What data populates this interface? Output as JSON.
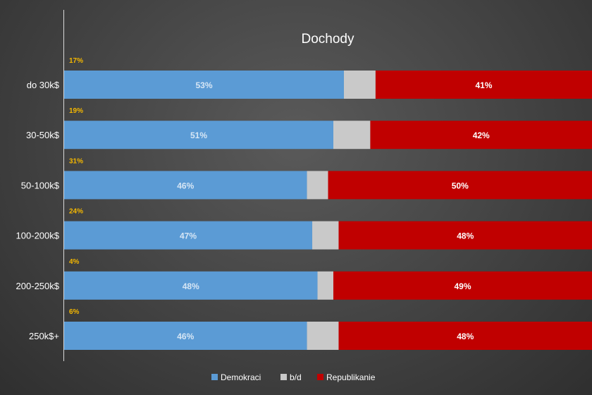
{
  "chart_data": {
    "type": "bar",
    "orientation": "horizontal",
    "stacked": true,
    "percent_stacked": true,
    "title": "Dochody",
    "categories": [
      "do 30k$",
      "30-50k$",
      "50-100k$",
      "100-200k$",
      "200-250k$",
      "250k$+"
    ],
    "category_share_labels": [
      "17%",
      "19%",
      "31%",
      "24%",
      "4%",
      "6%"
    ],
    "series": [
      {
        "name": "Demokraci",
        "color": "#5b9bd5",
        "label_color": "#d6e6f5",
        "values": [
          53,
          51,
          46,
          47,
          48,
          46
        ],
        "labels": [
          "53%",
          "51%",
          "46%",
          "47%",
          "48%",
          "46%"
        ]
      },
      {
        "name": "b/d",
        "color": "#c9c9c9",
        "values": [
          6,
          7,
          4,
          5,
          3,
          6
        ],
        "labels": [
          "",
          "",
          "",
          "",
          "",
          ""
        ]
      },
      {
        "name": "Republikanie",
        "color": "#c00000",
        "label_color": "#ffffff",
        "values": [
          41,
          42,
          50,
          48,
          49,
          48
        ],
        "labels": [
          "41%",
          "42%",
          "50%",
          "48%",
          "49%",
          "48%"
        ]
      }
    ],
    "xlim": [
      0,
      100
    ],
    "grid": false,
    "legend_position": "bottom"
  }
}
